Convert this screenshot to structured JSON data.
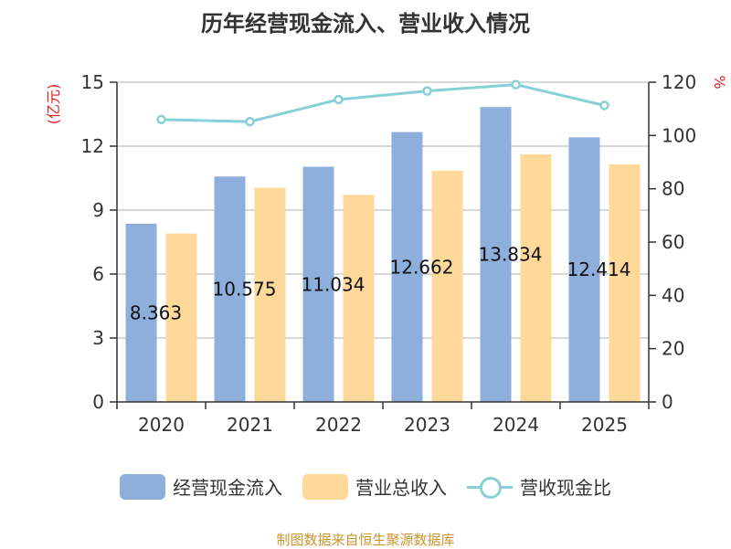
{
  "chart_data": {
    "type": "bar",
    "title": "历年经营现金流入、营业收入情况",
    "categories": [
      "2020",
      "2021",
      "2022",
      "2023",
      "2024",
      "2025"
    ],
    "series": [
      {
        "name": "经营现金流入",
        "type": "bar",
        "axis": "left",
        "color": "#8eaedb",
        "values": [
          8.363,
          10.575,
          11.034,
          12.662,
          13.834,
          12.414
        ],
        "data_labels": [
          "8.363",
          "10.575",
          "11.034",
          "12.662",
          "13.834",
          "12.414"
        ]
      },
      {
        "name": "营业总收入",
        "type": "bar",
        "axis": "left",
        "color": "#ffd99a",
        "values": [
          7.9,
          10.05,
          9.72,
          10.85,
          11.62,
          11.15
        ]
      },
      {
        "name": "营收现金比",
        "type": "line",
        "axis": "right",
        "color": "#86d0d6",
        "values": [
          106,
          105.2,
          113.5,
          116.7,
          119.1,
          111.3
        ]
      }
    ],
    "y_left": {
      "label": "(亿元)",
      "min": 0,
      "max": 15,
      "ticks": [
        0,
        3,
        6,
        9,
        12,
        15
      ]
    },
    "y_right": {
      "label": "%",
      "min": 0,
      "max": 120,
      "ticks": [
        0,
        20,
        40,
        60,
        80,
        100,
        120
      ]
    },
    "grid": true,
    "legend_position": "bottom"
  },
  "source_text": "制图数据来自恒生聚源数据库"
}
